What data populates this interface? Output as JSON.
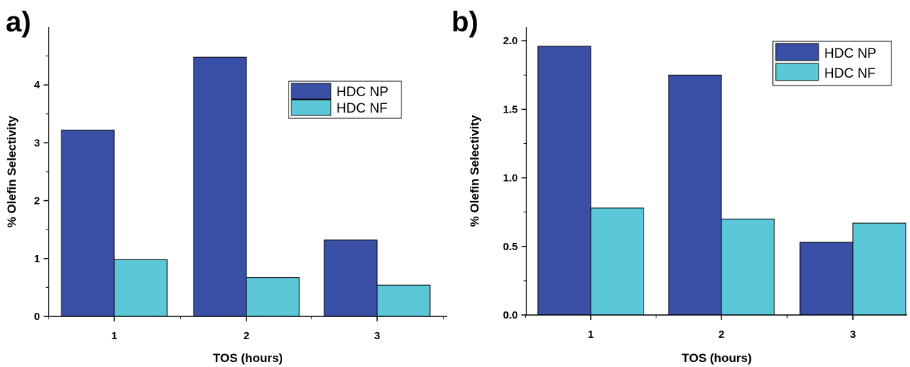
{
  "figure": {
    "panels": [
      "a)",
      "b)"
    ]
  },
  "chart_data": [
    {
      "type": "bar",
      "panel_label": "a)",
      "title": "",
      "xlabel": "TOS (hours)",
      "ylabel": "% Olefin Selectivity",
      "categories": [
        "1",
        "2",
        "3"
      ],
      "ylim": [
        0,
        5
      ],
      "yticks": [
        "0",
        "1",
        "2",
        "3",
        "4"
      ],
      "yticks_values": [
        0,
        1,
        2,
        3,
        4
      ],
      "grid": false,
      "legend": "upper-right",
      "series": [
        {
          "name": "HDC NP",
          "color": "#3a4fa6",
          "values": [
            3.22,
            4.48,
            1.32
          ]
        },
        {
          "name": "HDC NF",
          "color": "#5bc8d9",
          "values": [
            0.98,
            0.67,
            0.54
          ]
        }
      ]
    },
    {
      "type": "bar",
      "panel_label": "b)",
      "title": "",
      "xlabel": "TOS (hours)",
      "ylabel": "% Olefin Selectivity",
      "categories": [
        "1",
        "2",
        "3"
      ],
      "ylim": [
        0,
        2.1
      ],
      "yticks": [
        "0.0",
        "0.5",
        "1.0",
        "1.5",
        "2.0"
      ],
      "yticks_values": [
        0,
        0.5,
        1.0,
        1.5,
        2.0
      ],
      "grid": false,
      "legend": "top-right",
      "series": [
        {
          "name": "HDC NP",
          "color": "#3a4fa6",
          "values": [
            1.96,
            1.75,
            0.53
          ]
        },
        {
          "name": "HDC NF",
          "color": "#5bc8d9",
          "values": [
            0.78,
            0.7,
            0.67
          ]
        }
      ]
    }
  ]
}
